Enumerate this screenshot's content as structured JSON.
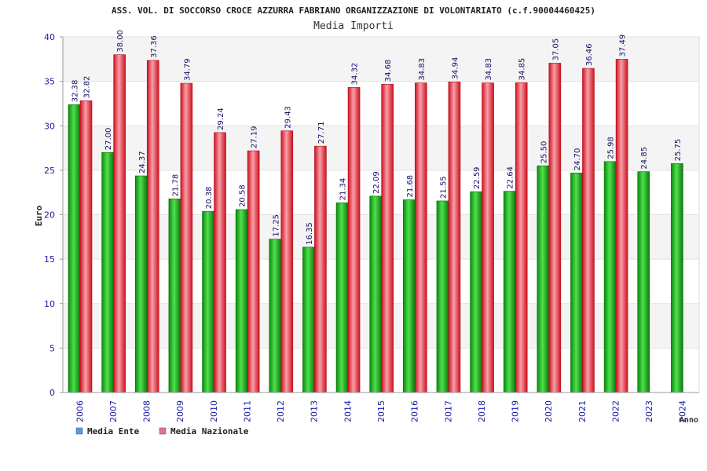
{
  "chart_data": {
    "type": "bar",
    "title": "ASS. VOL. DI SOCCORSO CROCE AZZURRA FABRIANO ORGANIZZAZIONE DI VOLONTARIATO (c.f.90004460425)",
    "subtitle": "Media Importi",
    "xlabel": "Anno",
    "ylabel": "Euro",
    "ylim": [
      0,
      40
    ],
    "yticks": [
      0,
      5,
      10,
      15,
      20,
      25,
      30,
      35,
      40
    ],
    "grid": true,
    "legend_position": "bottom-left",
    "categories": [
      "2006",
      "2007",
      "2008",
      "2009",
      "2010",
      "2011",
      "2012",
      "2013",
      "2014",
      "2015",
      "2016",
      "2017",
      "2018",
      "2019",
      "2020",
      "2021",
      "2022",
      "2023",
      "2024"
    ],
    "series": [
      {
        "name": "Media Ente",
        "color": "#1cb51c",
        "legend_color": "#5599e6",
        "values": [
          32.38,
          27.0,
          24.37,
          21.78,
          20.38,
          20.58,
          17.25,
          16.35,
          21.34,
          22.09,
          21.68,
          21.55,
          22.59,
          22.64,
          25.5,
          24.7,
          25.98,
          24.85,
          25.75
        ],
        "labels": [
          "32.38",
          "27.00",
          "24.37",
          "21.78",
          "20.38",
          "20.58",
          "17.25",
          "16.35",
          "21.34",
          "22.09",
          "21.68",
          "21.55",
          "22.59",
          "22.64",
          "25.50",
          "24.70",
          "25.98",
          "24.85",
          "25.75"
        ]
      },
      {
        "name": "Media Nazionale",
        "color": "#e8233a",
        "legend_color": "#e06fa0",
        "values": [
          32.82,
          38.0,
          37.36,
          34.79,
          29.24,
          27.19,
          29.43,
          27.71,
          34.32,
          34.68,
          34.83,
          34.94,
          34.83,
          34.85,
          37.05,
          36.46,
          37.49,
          null,
          null
        ],
        "labels": [
          "32.82",
          "38.00",
          "37.36",
          "34.79",
          "29.24",
          "27.19",
          "29.43",
          "27.71",
          "34.32",
          "34.68",
          "34.83",
          "34.94",
          "34.83",
          "34.85",
          "37.05",
          "36.46",
          "37.49",
          "",
          ""
        ]
      }
    ]
  }
}
